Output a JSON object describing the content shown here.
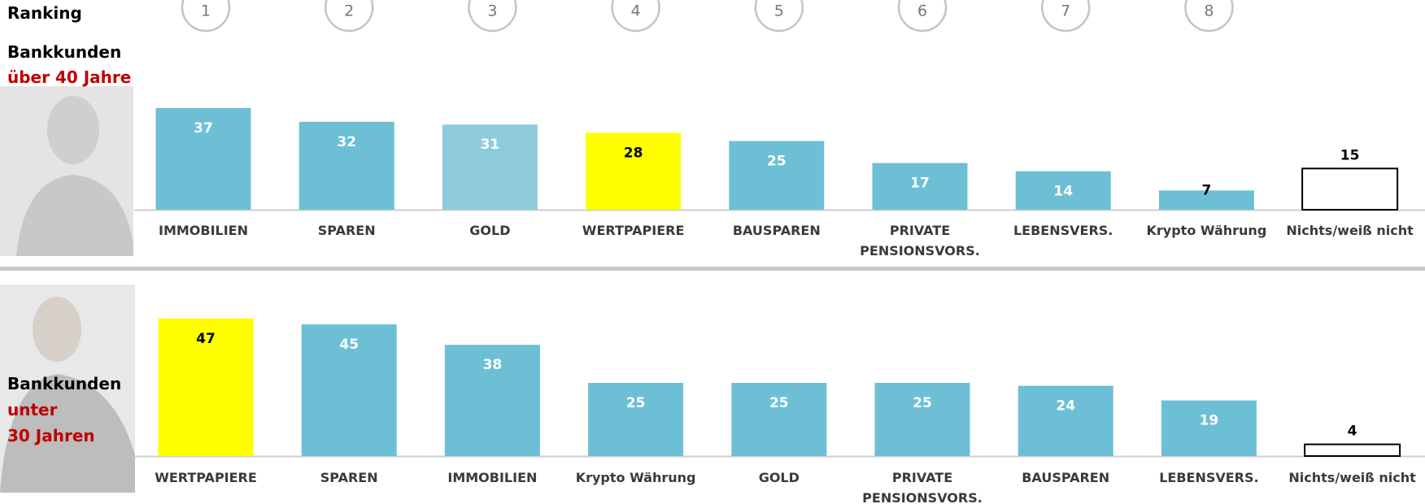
{
  "ranking": {
    "label": "Ranking",
    "ranks": [
      1,
      2,
      3,
      4,
      5,
      6,
      7,
      8
    ]
  },
  "chart_data": [
    {
      "type": "bar",
      "group": [
        "Bankkunden",
        "über 40 Jahre"
      ],
      "categories": [
        "IMMOBILIEN",
        "SPAREN",
        "GOLD",
        "WERTPAPIERE",
        "BAUSPAREN",
        "PRIVATE PENSIONSVORS.",
        "LEBENSVERS.",
        "Krypto Währung",
        "Nichts/weiß nicht"
      ],
      "values": [
        37,
        32,
        31,
        28,
        25,
        17,
        14,
        7,
        15
      ],
      "colors": [
        "#6dbfd6",
        "#6dbfd6",
        "#8ecbdd",
        "#ffff00",
        "#6dbfd6",
        "#6dbfd6",
        "#6dbfd6",
        "#6dbfd6",
        "#ffffff"
      ],
      "label_colors": [
        "#ffffff",
        "#ffffff",
        "#ffffff",
        "#000000",
        "#ffffff",
        "#ffffff",
        "#ffffff",
        "#000000",
        "#000000"
      ],
      "ylim": [
        0,
        50
      ]
    },
    {
      "type": "bar",
      "group": [
        "Bankkunden",
        "unter",
        "30 Jahren"
      ],
      "categories": [
        "WERTPAPIERE",
        "SPAREN",
        "IMMOBILIEN",
        "Krypto Währung",
        "GOLD",
        "PRIVATE PENSIONSVORS.",
        "BAUSPAREN",
        "LEBENSVERS.",
        "Nichts/weiß nicht"
      ],
      "values": [
        47,
        45,
        38,
        25,
        25,
        25,
        24,
        19,
        4
      ],
      "colors": [
        "#ffff00",
        "#6dbfd6",
        "#6dbfd6",
        "#6dbfd6",
        "#6dbfd6",
        "#6dbfd6",
        "#6dbfd6",
        "#6dbfd6",
        "#ffffff"
      ],
      "label_colors": [
        "#000000",
        "#ffffff",
        "#ffffff",
        "#ffffff",
        "#ffffff",
        "#ffffff",
        "#ffffff",
        "#ffffff",
        "#000000"
      ],
      "ylim": [
        0,
        50
      ]
    }
  ]
}
